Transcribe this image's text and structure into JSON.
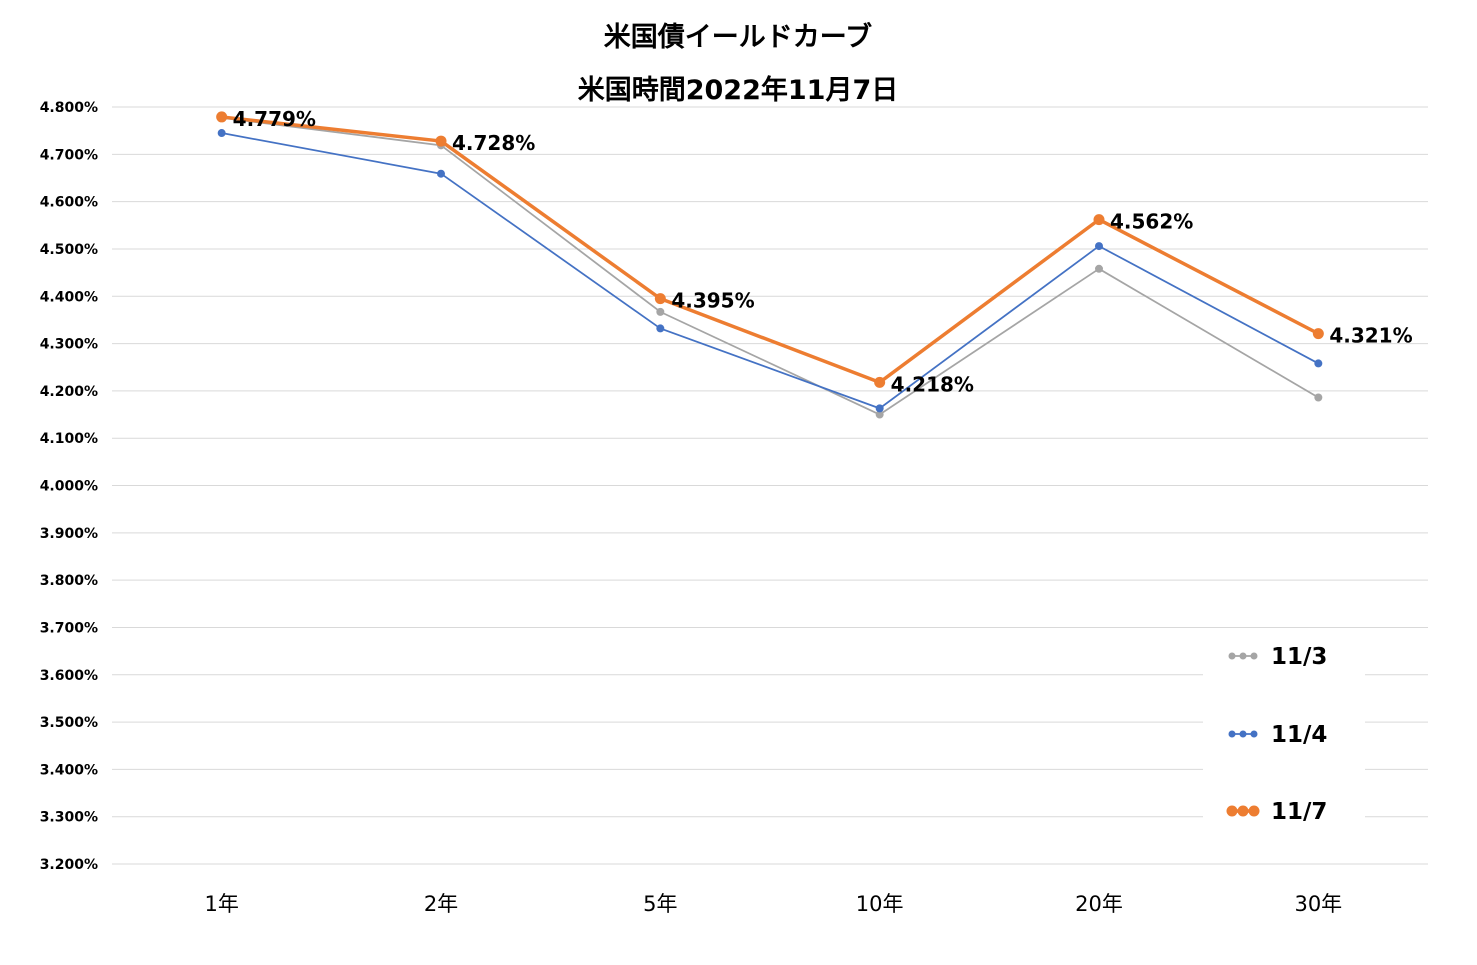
{
  "chart_data": {
    "type": "line",
    "title": "米国債イールドカーブ",
    "subtitle": "米国時間2022年11月7日",
    "categories": [
      "1年",
      "2年",
      "5年",
      "10年",
      "20年",
      "30年"
    ],
    "ylim": [
      3.2,
      4.8
    ],
    "ytick_step": 0.1,
    "ytick_format": "percent_3dp",
    "grid": true,
    "legend_position": "bottom-right",
    "series": [
      {
        "name": "11/3",
        "color": "#a5a5a5",
        "values": [
          4.777,
          4.719,
          4.367,
          4.15,
          4.458,
          4.186
        ],
        "emphasis": false
      },
      {
        "name": "11/4",
        "color": "#4472c4",
        "values": [
          4.745,
          4.659,
          4.332,
          4.163,
          4.506,
          4.258
        ],
        "emphasis": false
      },
      {
        "name": "11/7",
        "color": "#ed7d31",
        "values": [
          4.779,
          4.728,
          4.395,
          4.218,
          4.562,
          4.321
        ],
        "emphasis": true,
        "data_labels": [
          "4.779%",
          "4.728%",
          "4.395%",
          "4.218%",
          "4.562%",
          "4.321%"
        ]
      }
    ]
  }
}
